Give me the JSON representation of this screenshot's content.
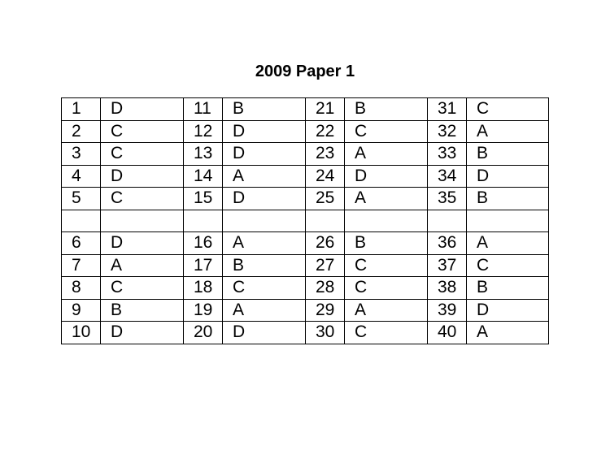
{
  "title": "2009 Paper 1",
  "rows": [
    [
      [
        "1",
        "D"
      ],
      [
        "11",
        "B"
      ],
      [
        "21",
        "B"
      ],
      [
        "31",
        "C"
      ]
    ],
    [
      [
        "2",
        "C"
      ],
      [
        "12",
        "D"
      ],
      [
        "22",
        "C"
      ],
      [
        "32",
        "A"
      ]
    ],
    [
      [
        "3",
        "C"
      ],
      [
        "13",
        "D"
      ],
      [
        "23",
        "A"
      ],
      [
        "33",
        "B"
      ]
    ],
    [
      [
        "4",
        "D"
      ],
      [
        "14",
        "A"
      ],
      [
        "24",
        "D"
      ],
      [
        "34",
        "D"
      ]
    ],
    [
      [
        "5",
        "C"
      ],
      [
        "15",
        "D"
      ],
      [
        "25",
        "A"
      ],
      [
        "35",
        "B"
      ]
    ],
    [
      [
        "",
        ""
      ],
      [
        "",
        ""
      ],
      [
        "",
        ""
      ],
      [
        "",
        ""
      ]
    ],
    [
      [
        "6",
        "D"
      ],
      [
        "16",
        "A"
      ],
      [
        "26",
        "B"
      ],
      [
        "36",
        "A"
      ]
    ],
    [
      [
        "7",
        "A"
      ],
      [
        "17",
        "B"
      ],
      [
        "27",
        "C"
      ],
      [
        "37",
        "C"
      ]
    ],
    [
      [
        "8",
        "C"
      ],
      [
        "18",
        "C"
      ],
      [
        "28",
        "C"
      ],
      [
        "38",
        "B"
      ]
    ],
    [
      [
        "9",
        "B"
      ],
      [
        "19",
        "A"
      ],
      [
        "29",
        "A"
      ],
      [
        "39",
        "D"
      ]
    ],
    [
      [
        "10",
        "D"
      ],
      [
        "20",
        "D"
      ],
      [
        "30",
        "C"
      ],
      [
        "40",
        "A"
      ]
    ]
  ]
}
